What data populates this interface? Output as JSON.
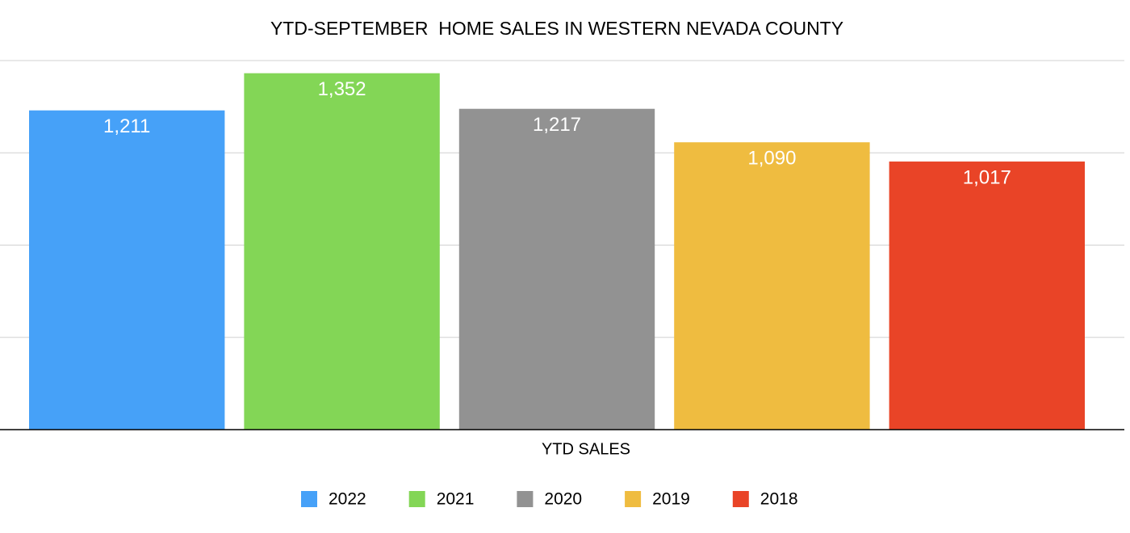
{
  "chart_data": {
    "type": "bar",
    "title": "YTD-SEPTEMBER  HOME SALES IN WESTERN NEVADA COUNTY",
    "categories": [
      "YTD SALES"
    ],
    "series": [
      {
        "name": "2022",
        "color": "#46a1f8",
        "values": [
          1211
        ],
        "value_labels": [
          "1,211"
        ]
      },
      {
        "name": "2021",
        "color": "#83d656",
        "values": [
          1352
        ],
        "value_labels": [
          "1,352"
        ]
      },
      {
        "name": "2020",
        "color": "#929292",
        "values": [
          1217
        ],
        "value_labels": [
          "1,217"
        ]
      },
      {
        "name": "2019",
        "color": "#efbc40",
        "values": [
          1090
        ],
        "value_labels": [
          "1,090"
        ]
      },
      {
        "name": "2018",
        "color": "#e94427",
        "values": [
          1017
        ],
        "value_labels": [
          "1,017"
        ]
      }
    ],
    "ylim": [
      0,
      1400
    ],
    "yticks": [
      0,
      350,
      700,
      1050,
      1400
    ],
    "grid": true,
    "legend": "bottom"
  }
}
